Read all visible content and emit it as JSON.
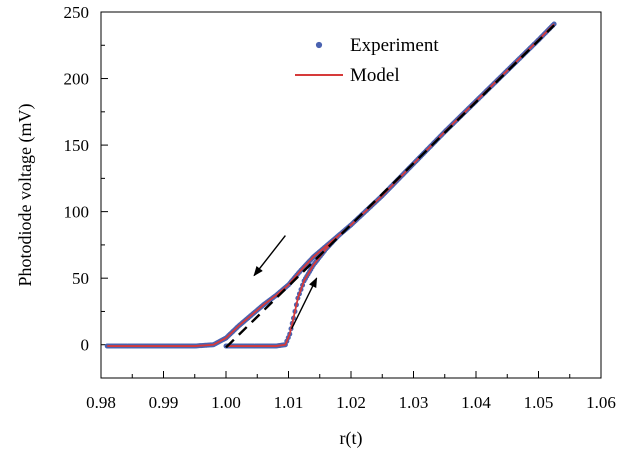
{
  "chart_data": {
    "type": "line",
    "xlabel": "r(t)",
    "ylabel": "Photodiode voltage (mV)",
    "xlim": [
      0.98,
      1.06
    ],
    "ylim": [
      -25,
      250
    ],
    "x_ticks": [
      "0.98",
      "0.99",
      "1.00",
      "1.01",
      "1.02",
      "1.03",
      "1.04",
      "1.05",
      "1.06"
    ],
    "y_ticks": [
      "0",
      "50",
      "100",
      "150",
      "200",
      "250"
    ],
    "legend": {
      "placement": "top-center",
      "entries": [
        "Experiment",
        "Model"
      ]
    },
    "colors": {
      "experiment": "#4a62b0",
      "model": "#d63a3a",
      "linear_fit": "#000000",
      "arrows": "#000000"
    },
    "series": [
      {
        "name": "Experiment",
        "style": "scatter",
        "x": [
          0.981,
          0.985,
          0.99,
          0.995,
          0.998,
          1.0,
          1.002,
          1.004,
          1.006,
          1.008,
          1.01,
          1.012,
          1.014,
          1.016,
          1.018,
          1.02,
          1.025,
          1.03,
          1.035,
          1.04,
          1.045,
          1.05,
          1.0525
        ],
        "y": [
          -1,
          -1,
          -1,
          -1,
          0,
          5,
          14,
          22,
          30,
          37,
          45,
          56,
          66,
          74,
          82,
          90,
          112,
          136,
          160,
          183,
          206,
          229,
          241
        ]
      },
      {
        "name": "Model",
        "style": "line",
        "x": [
          0.981,
          0.985,
          0.99,
          0.995,
          0.998,
          1.0,
          1.002,
          1.004,
          1.006,
          1.008,
          1.01,
          1.012,
          1.014,
          1.016,
          1.018,
          1.02,
          1.025,
          1.03,
          1.035,
          1.04,
          1.045,
          1.05,
          1.0525
        ],
        "y": [
          -1,
          -1,
          -1,
          -1,
          0,
          5,
          14,
          22,
          30,
          37,
          45,
          56,
          66,
          74,
          82,
          90,
          112,
          136,
          160,
          183,
          206,
          229,
          241
        ]
      },
      {
        "style": "scatter",
        "x": [
          1.0,
          1.004,
          1.008,
          1.0095,
          1.0102,
          1.0108,
          1.0115,
          1.0125,
          1.014,
          1.016,
          1.018
        ],
        "y": [
          -1,
          -1,
          -1,
          0,
          8,
          20,
          35,
          48,
          60,
          72,
          82
        ]
      },
      {
        "style": "line",
        "x": [
          1.0,
          1.004,
          1.008,
          1.0095,
          1.0102,
          1.0108,
          1.0115,
          1.0125,
          1.014,
          1.016,
          1.018
        ],
        "y": [
          -1,
          -1,
          -1,
          0,
          8,
          20,
          35,
          48,
          60,
          72,
          82
        ]
      },
      {
        "style": "dashed",
        "x": [
          1.0,
          1.0525
        ],
        "y": [
          -2,
          240
        ]
      }
    ],
    "arrows": [
      {
        "direction": "sweep-down",
        "from": [
          1.0095,
          82
        ],
        "to": [
          1.0045,
          52
        ]
      },
      {
        "direction": "sweep-up",
        "from": [
          1.0105,
          12
        ],
        "to": [
          1.0145,
          50
        ]
      }
    ]
  }
}
